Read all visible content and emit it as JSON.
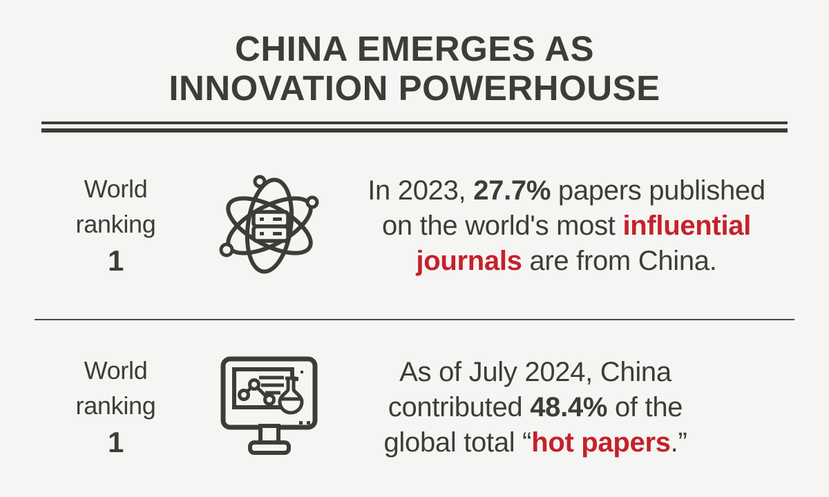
{
  "page": {
    "background": "#f5f5f3",
    "text_color": "#3d3c39",
    "accent_color": "#c5212a",
    "rule_color": "#3c3b38"
  },
  "title": {
    "line1": "CHINA EMERGES AS",
    "line2": "INNOVATION POWERHOUSE"
  },
  "rows": [
    {
      "rank": {
        "line1": "World",
        "line2": "ranking",
        "value": "1"
      },
      "icon": "atom-science-icon",
      "segments": [
        {
          "text": "In 2023, ",
          "style": "normal"
        },
        {
          "text": "27.7%",
          "style": "bold"
        },
        {
          "text": " papers published",
          "style": "normal"
        },
        {
          "style": "break"
        },
        {
          "text": "on the world's most ",
          "style": "normal"
        },
        {
          "text": "influential",
          "style": "red"
        },
        {
          "style": "break"
        },
        {
          "text": "journals",
          "style": "red"
        },
        {
          "text": " are from China.",
          "style": "normal"
        }
      ]
    },
    {
      "rank": {
        "line1": "World",
        "line2": "ranking",
        "value": "1"
      },
      "icon": "monitor-chart-flask-icon",
      "segments": [
        {
          "text": "As of July 2024, China",
          "style": "normal"
        },
        {
          "style": "break"
        },
        {
          "text": "contributed ",
          "style": "normal"
        },
        {
          "text": "48.4%",
          "style": "bold"
        },
        {
          "text": " of the",
          "style": "normal"
        },
        {
          "style": "break"
        },
        {
          "text": "global total “",
          "style": "normal"
        },
        {
          "text": "hot papers",
          "style": "red"
        },
        {
          "text": ".”",
          "style": "normal"
        }
      ]
    }
  ]
}
